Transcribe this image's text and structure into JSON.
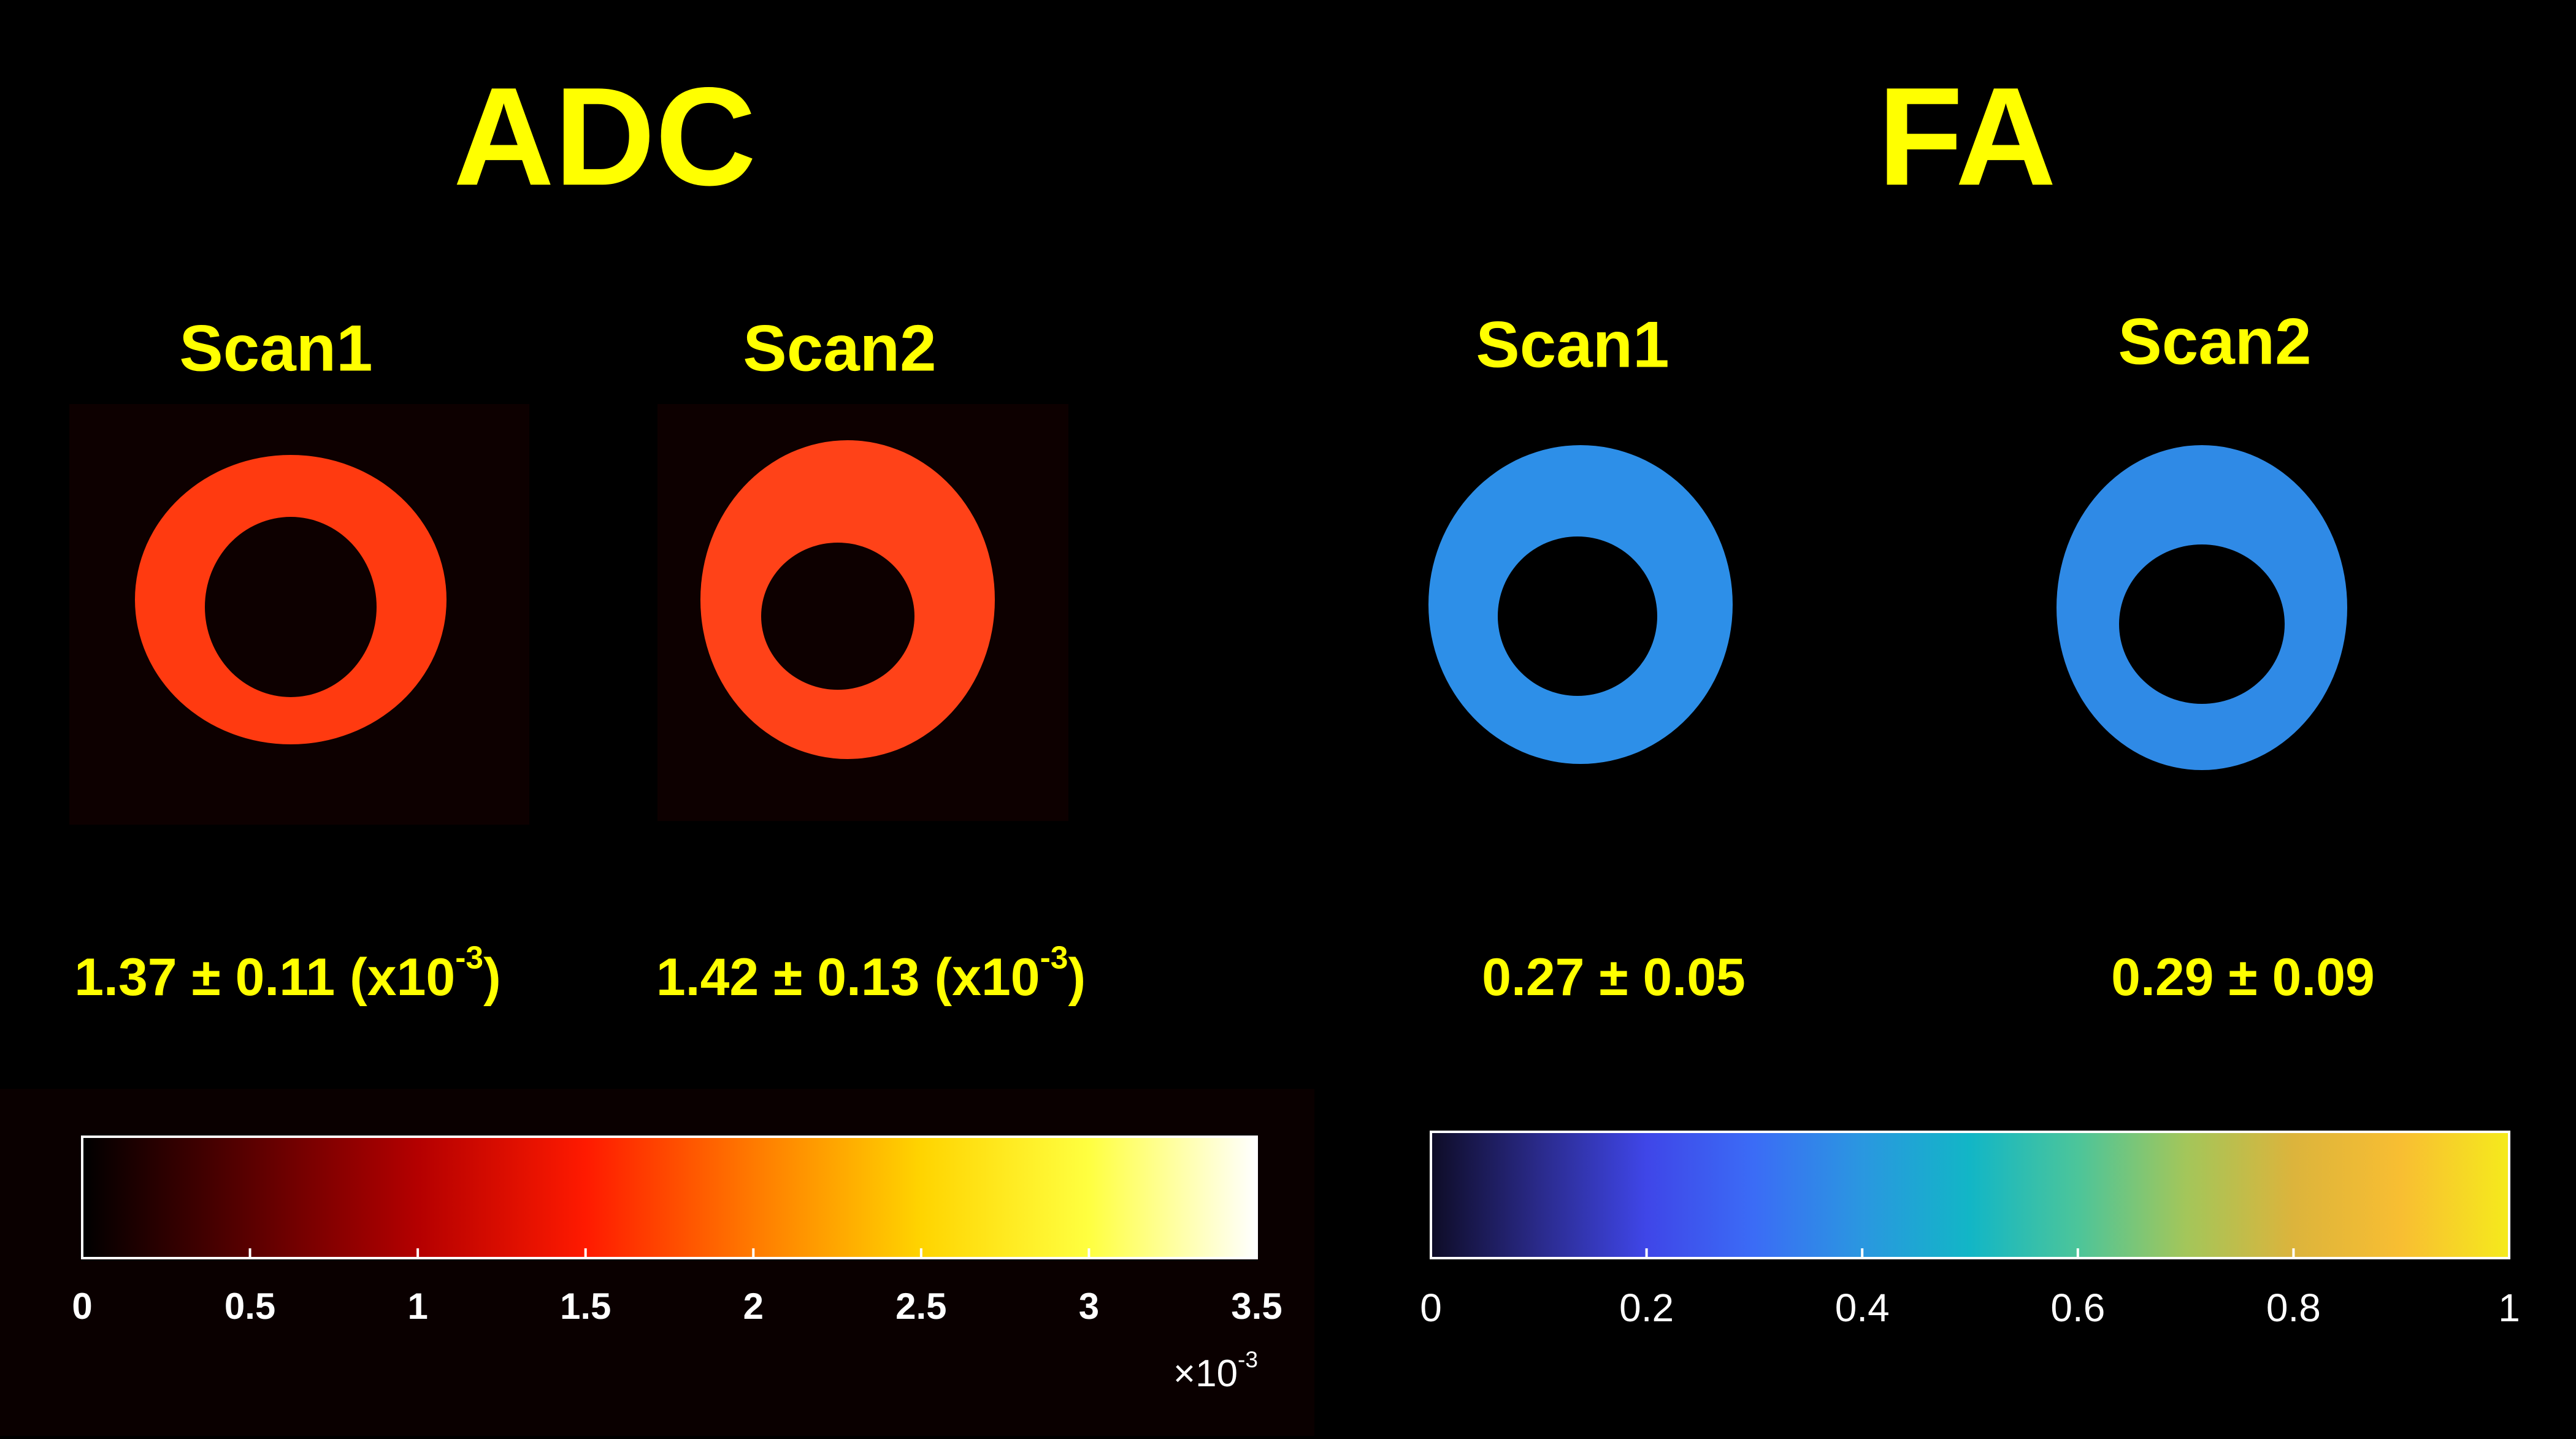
{
  "panels": [
    {
      "title": "ADC",
      "scans": [
        {
          "label": "Scan1",
          "stat": {
            "main": "1.37 ± 0.11 (x10",
            "sup": "-3",
            "close": ")"
          }
        },
        {
          "label": "Scan2",
          "stat": {
            "main": "1.42 ± 0.13 (x10",
            "sup": "-3",
            "close": ")"
          }
        }
      ],
      "colorbar": {
        "lim": [
          0,
          3.5
        ],
        "ticks": [
          0,
          0.5,
          1,
          1.5,
          2,
          2.5,
          3,
          3.5
        ],
        "multiplier": {
          "main": "×10",
          "sup": "-3"
        },
        "colormap": [
          "#000000",
          "#5a0000",
          "#b40000",
          "#ff1a00",
          "#ff7a00",
          "#ffd400",
          "#ffff40",
          "#ffffff"
        ]
      }
    },
    {
      "title": "FA",
      "scans": [
        {
          "label": "Scan1",
          "stat": {
            "main": "0.27 ± 0.05"
          }
        },
        {
          "label": "Scan2",
          "stat": {
            "main": "0.29 ± 0.09"
          }
        }
      ],
      "colorbar": {
        "lim": [
          0,
          1
        ],
        "ticks": [
          0,
          0.2,
          0.4,
          0.6,
          0.8,
          1
        ],
        "colormap": [
          "#0e0c26",
          "#2a2a8a",
          "#3f46e8",
          "#3b6cf6",
          "#2a97e0",
          "#12b6c6",
          "#4cc59a",
          "#a3c65a",
          "#dcb43c",
          "#f8be32",
          "#f5ea1c"
        ]
      }
    }
  ]
}
